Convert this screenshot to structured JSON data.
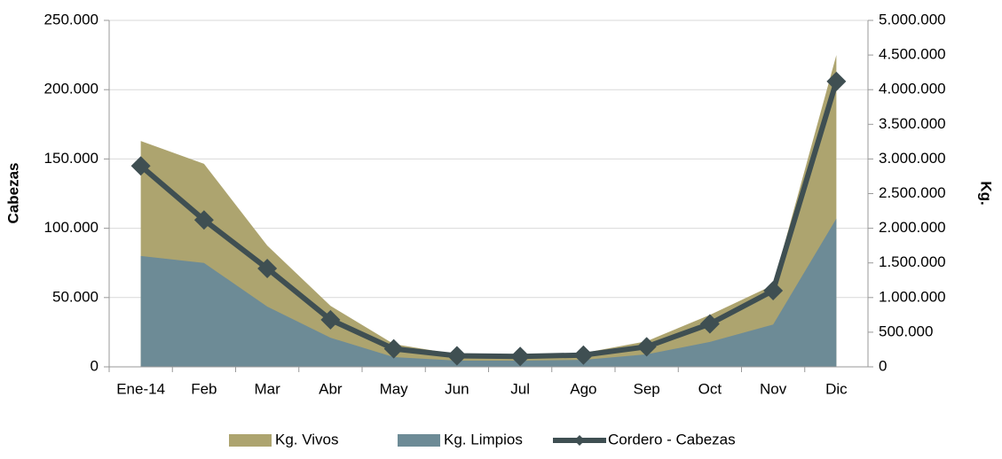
{
  "chart_data": {
    "type": "combo",
    "categories": [
      "Ene-14",
      "Feb",
      "Mar",
      "Abr",
      "May",
      "Jun",
      "Jul",
      "Ago",
      "Sep",
      "Oct",
      "Nov",
      "Dic"
    ],
    "ylabel": "Cabezas",
    "y2label": "Kg.",
    "ylim": [
      0,
      250000
    ],
    "yticks": [
      0,
      {
        "value": 50000,
        "label": "50.000"
      },
      {
        "value": 100000,
        "label": "100.000"
      },
      {
        "value": 150000,
        "label": "150.000"
      },
      {
        "value": 200000,
        "label": "200.000"
      },
      {
        "value": 250000,
        "label": "250.000"
      }
    ],
    "y2lim": [
      0,
      5000000
    ],
    "y2ticks": [
      0,
      {
        "value": 500000,
        "label": "500.000"
      },
      {
        "value": 1000000,
        "label": "1.000.000"
      },
      {
        "value": 1500000,
        "label": "1.500.000"
      },
      {
        "value": 2000000,
        "label": "2.000.000"
      },
      {
        "value": 2500000,
        "label": "2.500.000"
      },
      {
        "value": 3000000,
        "label": "3.000.000"
      },
      {
        "value": 3500000,
        "label": "3.500.000"
      },
      {
        "value": 4000000,
        "label": "4.000.000"
      },
      {
        "value": 4500000,
        "label": "4.500.000"
      },
      {
        "value": 5000000,
        "label": "5.000.000"
      }
    ],
    "grid": true,
    "legend": "bottom",
    "series": [
      {
        "name": "Kg. Vivos",
        "type": "area",
        "axis": "y2",
        "color": "#ada46f",
        "values": [
          3260000,
          2930000,
          1750000,
          880000,
          330000,
          180000,
          170000,
          200000,
          370000,
          750000,
          1180000,
          4500000
        ]
      },
      {
        "name": "Kg. Limpios",
        "type": "area",
        "axis": "y2",
        "color": "#6d8b96",
        "values": [
          1600000,
          1500000,
          870000,
          420000,
          140000,
          90000,
          90000,
          100000,
          180000,
          360000,
          610000,
          2140000
        ]
      },
      {
        "name": "Cordero - Cabezas",
        "type": "line",
        "axis": "y",
        "color": "#3f4f52",
        "values": [
          145000,
          106000,
          71000,
          34000,
          13000,
          8000,
          7500,
          8500,
          14500,
          31000,
          55000,
          206000
        ]
      }
    ]
  }
}
